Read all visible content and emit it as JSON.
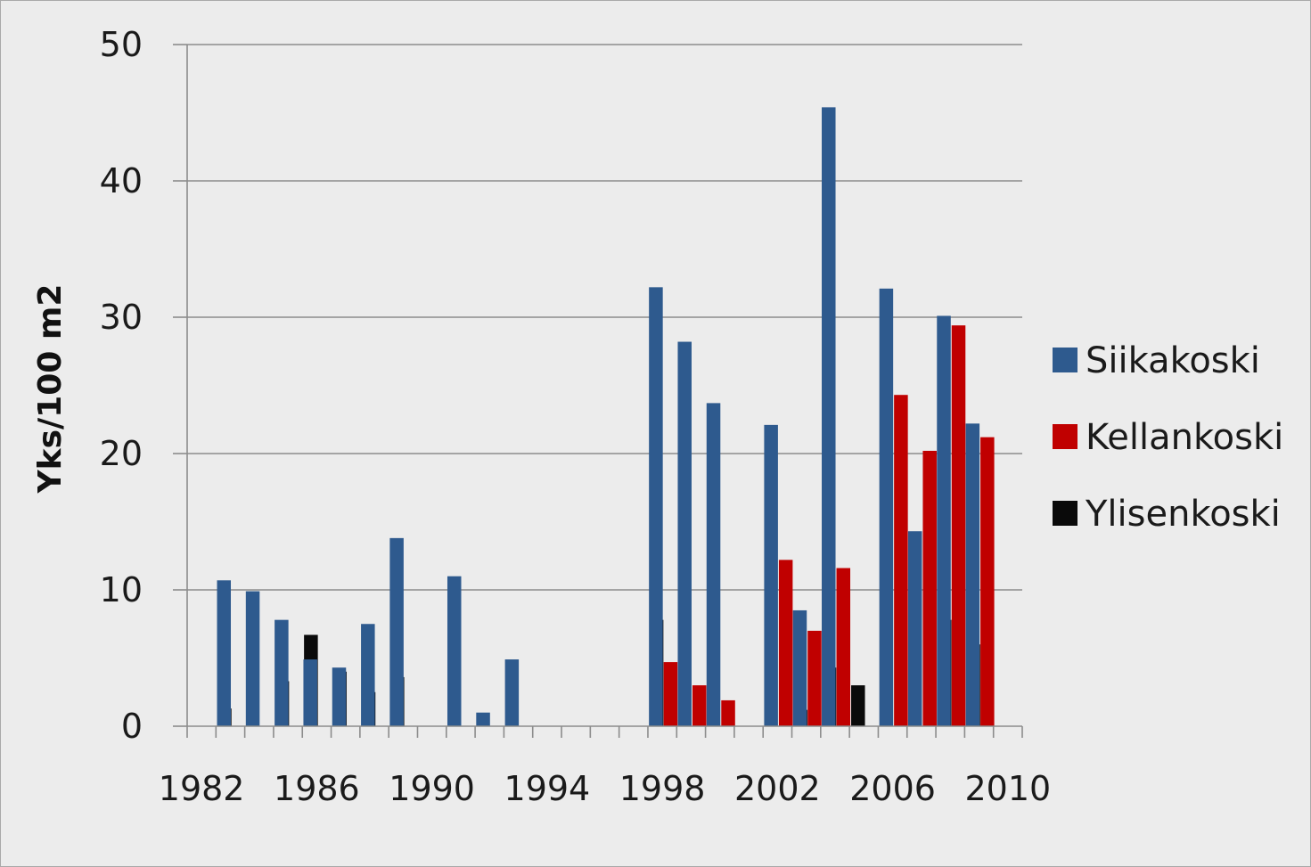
{
  "chart_data": {
    "type": "bar",
    "title": "",
    "xlabel": "",
    "ylabel": "Yks/100 m2",
    "ylim": [
      0,
      50
    ],
    "yticks": [
      0,
      10,
      20,
      30,
      40,
      50
    ],
    "x_tick_labels": [
      "1982",
      "1986",
      "1990",
      "1994",
      "1998",
      "2002",
      "2006",
      "2010"
    ],
    "categories": [
      "1982",
      "1983",
      "1984",
      "1985",
      "1986",
      "1987",
      "1988",
      "1989",
      "1990",
      "1991",
      "1992",
      "1993",
      "1994",
      "1995",
      "1996",
      "1997",
      "1998",
      "1999",
      "2000",
      "2001",
      "2002",
      "2003",
      "2004",
      "2005",
      "2006",
      "2007",
      "2008",
      "2009",
      "2010"
    ],
    "series": [
      {
        "name": "Siikakoski",
        "color": "#2e5a8e",
        "values": [
          null,
          10.7,
          9.9,
          7.8,
          4.9,
          4.3,
          7.5,
          13.8,
          null,
          11.0,
          1.0,
          4.9,
          null,
          null,
          null,
          null,
          32.2,
          28.2,
          23.7,
          null,
          22.1,
          8.5,
          45.4,
          null,
          32.1,
          14.3,
          30.1,
          22.2,
          null
        ]
      },
      {
        "name": "Kellankoski",
        "color": "#c00000",
        "values": [
          null,
          null,
          null,
          null,
          null,
          null,
          null,
          null,
          null,
          null,
          null,
          null,
          null,
          null,
          null,
          null,
          4.7,
          3.0,
          1.9,
          null,
          12.2,
          7.0,
          11.6,
          null,
          24.3,
          20.2,
          29.4,
          21.2,
          null
        ]
      },
      {
        "name": "Ylisenkoski",
        "color": "#0a0a0a",
        "values": [
          1.3,
          null,
          3.3,
          6.7,
          4.0,
          2.5,
          3.6,
          null,
          null,
          null,
          null,
          null,
          null,
          null,
          null,
          7.8,
          null,
          null,
          null,
          null,
          1.2,
          4.3,
          3.0,
          null,
          null,
          7.8,
          6.0,
          null,
          null
        ]
      }
    ],
    "grid": "horizontal",
    "legend_position": "right"
  }
}
